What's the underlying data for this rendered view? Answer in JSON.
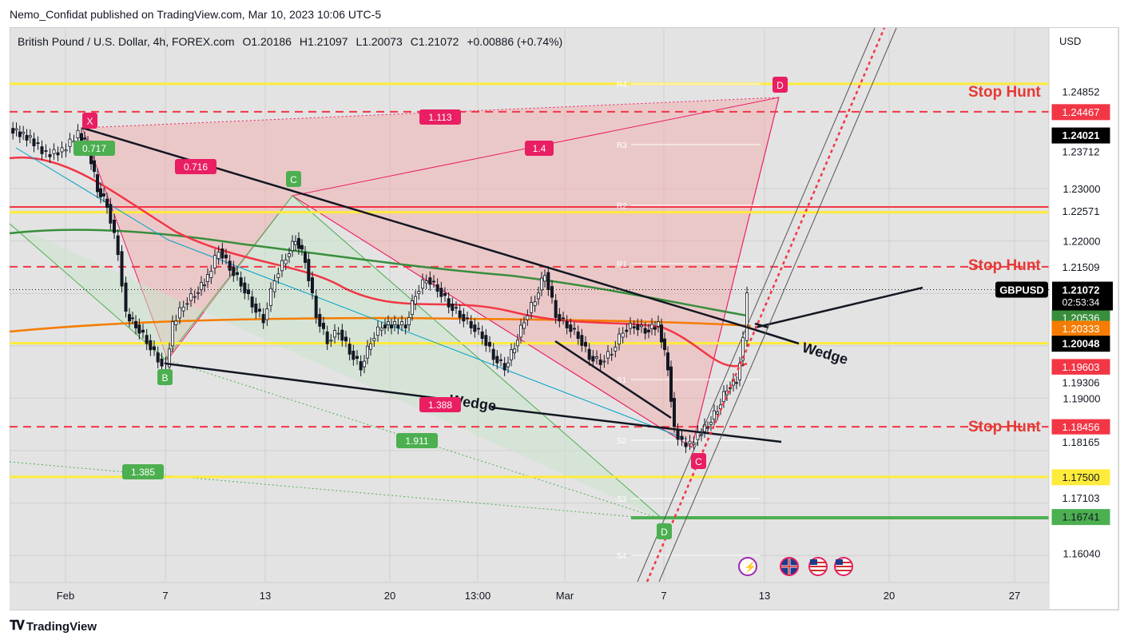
{
  "publisher_line": "Nemo_Confidat published on TradingView.com, Mar 10, 2023 10:06 UTC-5",
  "footer_brand": "TradingView",
  "legend": {
    "symbol": "British Pound / U.S. Dollar, 4h, FOREX.com",
    "open": "O1.20186",
    "high": "H1.21097",
    "low": "L1.20073",
    "close": "C1.21072",
    "change": "+0.00886 (+0.74%)"
  },
  "currency_label": "USD",
  "chart_data": {
    "type": "line",
    "symbol": "GBPUSD",
    "interval": "4h",
    "ylim": [
      1.155,
      1.2605
    ],
    "x_tick_labels": [
      "Feb",
      "7",
      "13",
      "20",
      "13:00",
      "Mar",
      "7",
      "13",
      "20",
      "27"
    ],
    "y_tick_labels": [
      "1.23000",
      "1.22000",
      "1.19000",
      "1.16040"
    ],
    "last_price": {
      "label": "GBPUSD",
      "value": "1.21072",
      "countdown": "02:53:34",
      "color": "#000000"
    },
    "price_labels": [
      {
        "value": "1.24852",
        "bg": "#ffffff",
        "fg": "#131722"
      },
      {
        "value": "1.24467",
        "bg": "#f23645",
        "fg": "#ffffff"
      },
      {
        "value": "1.24021",
        "bg": "#000000",
        "fg": "#ffffff"
      },
      {
        "value": "1.23712",
        "bg": "#ffffff",
        "fg": "#131722"
      },
      {
        "value": "1.22571",
        "bg": "#ffffff",
        "fg": "#131722"
      },
      {
        "value": "1.21509",
        "bg": "#ffffff",
        "fg": "#131722"
      },
      {
        "value": "1.20536",
        "bg": "#388e3c",
        "fg": "#ffffff"
      },
      {
        "value": "1.20333",
        "bg": "#f57c00",
        "fg": "#ffffff"
      },
      {
        "value": "1.20048",
        "bg": "#000000",
        "fg": "#ffffff"
      },
      {
        "value": "1.19603",
        "bg": "#f23645",
        "fg": "#ffffff"
      },
      {
        "value": "1.19306",
        "bg": "#ffffff",
        "fg": "#131722"
      },
      {
        "value": "1.18456",
        "bg": "#f23645",
        "fg": "#ffffff"
      },
      {
        "value": "1.18165",
        "bg": "#ffffff",
        "fg": "#131722"
      },
      {
        "value": "1.17500",
        "bg": "#ffeb3b",
        "fg": "#131722"
      },
      {
        "value": "1.17103",
        "bg": "#ffffff",
        "fg": "#131722"
      },
      {
        "value": "1.16741",
        "bg": "#4caf50",
        "fg": "#131722"
      }
    ],
    "horizontal_levels": [
      {
        "value": 1.25,
        "style": "solid",
        "color": "#ffeb3b"
      },
      {
        "value": 1.24467,
        "style": "dashed",
        "color": "#f23645"
      },
      {
        "value": 1.2265,
        "style": "solid",
        "color": "#f23645"
      },
      {
        "value": 1.2255,
        "style": "solid",
        "color": "#ffeb3b"
      },
      {
        "value": 1.21509,
        "style": "dashed",
        "color": "#f23645"
      },
      {
        "value": 1.20048,
        "style": "solid",
        "color": "#ffeb3b"
      },
      {
        "value": 1.18456,
        "style": "dashed",
        "color": "#f23645"
      },
      {
        "value": 1.175,
        "style": "solid",
        "color": "#ffeb3b"
      }
    ],
    "annotations": [
      {
        "text": "Stop Hunt",
        "price": 1.2465
      },
      {
        "text": "Stop Hunt",
        "price": 1.2152
      },
      {
        "text": "Stop Hunt",
        "price": 1.1846
      },
      {
        "text": "Wedge",
        "note": "upper"
      },
      {
        "text": "Wedge",
        "note": "lower"
      }
    ],
    "pattern_points": [
      "X",
      "B",
      "C",
      "D",
      "C",
      "D"
    ],
    "ratios": [
      "0.717",
      "0.716",
      "1.113",
      "1.4",
      "1.388",
      "1.911",
      "1.385"
    ],
    "pivots": [
      "R4",
      "R3",
      "R2",
      "R1",
      "S1",
      "S2",
      "S3",
      "S4"
    ],
    "series": [
      {
        "name": "",
        "color": "#f23645",
        "kind": "ema-short"
      },
      {
        "name": "",
        "color": "#388e3c",
        "kind": "ma-mid"
      },
      {
        "name": "",
        "color": "#f57c00",
        "kind": "ma-long"
      }
    ],
    "grid": true,
    "legend_position": "top-left"
  }
}
